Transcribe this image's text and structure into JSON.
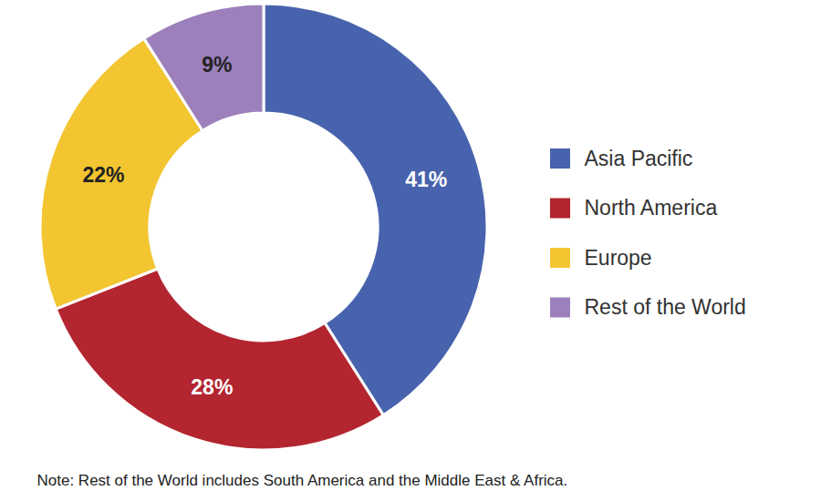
{
  "chart_data": {
    "type": "donut",
    "categories": [
      "Asia Pacific",
      "North America",
      "Europe",
      "Rest of the World"
    ],
    "values": [
      41,
      28,
      22,
      9
    ],
    "value_labels": [
      "41%",
      "28%",
      "22%",
      "9%"
    ],
    "colors": [
      "#4863ad",
      "#b3252f",
      "#f2c531",
      "#9c80bc"
    ],
    "data_labels": true,
    "legend": "right",
    "annotations": [
      "Note: Rest of the World includes South America and the Middle East & Africa."
    ]
  }
}
